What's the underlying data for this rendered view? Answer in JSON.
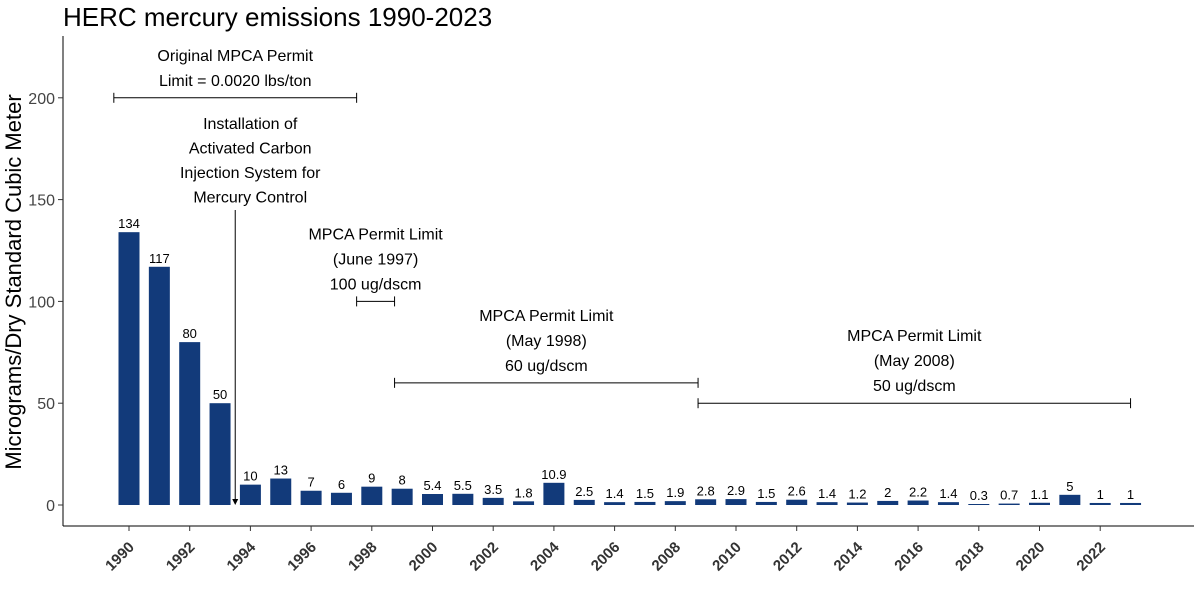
{
  "chart_data": {
    "type": "bar",
    "title": "HERC mercury emissions 1990-2023",
    "xlabel": "",
    "ylabel": "Micrograms/Dry Standard Cubic Meter",
    "ylim": [
      0,
      230
    ],
    "yticks": [
      0,
      50,
      100,
      150,
      200
    ],
    "xticks": [
      1990,
      1992,
      1994,
      1996,
      1998,
      2000,
      2002,
      2004,
      2006,
      2008,
      2010,
      2012,
      2014,
      2016,
      2018,
      2020,
      2022
    ],
    "grid": false,
    "bar_color": "#123a7a",
    "categories": [
      1990,
      1991,
      1992,
      1993,
      1994,
      1995,
      1996,
      1997,
      1998,
      1999,
      2000,
      2001,
      2002,
      2003,
      2004,
      2005,
      2006,
      2007,
      2008,
      2009,
      2010,
      2011,
      2012,
      2013,
      2014,
      2015,
      2016,
      2017,
      2018,
      2019,
      2020,
      2021,
      2022,
      2023
    ],
    "values": [
      134,
      117,
      80,
      50,
      10,
      13,
      7,
      6,
      9,
      8,
      5.4,
      5.5,
      3.5,
      1.8,
      10.9,
      2.5,
      1.4,
      1.5,
      1.9,
      2.8,
      2.9,
      1.5,
      2.6,
      1.4,
      1.2,
      2,
      2.2,
      1.4,
      0.3,
      0.7,
      1.1,
      5,
      1,
      1
    ],
    "value_labels": [
      "134",
      "117",
      "80",
      "50",
      "10",
      "13",
      "7",
      "6",
      "9",
      "8",
      "5.4",
      "5.5",
      "3.5",
      "1.8",
      "10.9",
      "2.5",
      "1.4",
      "1.5",
      "1.9",
      "2.8",
      "2.9",
      "1.5",
      "2.6",
      "1.4",
      "1.2",
      "2",
      "2.2",
      "1.4",
      "0.3",
      "0.7",
      "1.1",
      "5",
      "1",
      "1"
    ],
    "annotations": [
      {
        "name": "original-permit-limit",
        "lines": [
          "Original MPCA Permit",
          "Limit = 0.0020 lbs/ton"
        ],
        "x_start": 1989.5,
        "x_end": 1997.5,
        "y": 200
      },
      {
        "name": "permit-limit-1997",
        "lines": [
          "MPCA Permit Limit",
          "(June 1997)",
          "100 ug/dscm"
        ],
        "x_start": 1997.5,
        "x_end": 1998.75,
        "y": 100
      },
      {
        "name": "permit-limit-1998",
        "lines": [
          "MPCA Permit Limit",
          "(May 1998)",
          "60 ug/dscm"
        ],
        "x_start": 1998.75,
        "x_end": 2008.75,
        "y": 60
      },
      {
        "name": "permit-limit-2008",
        "lines": [
          "MPCA Permit Limit",
          "(May 2008)",
          "50 ug/dscm"
        ],
        "x_start": 2008.75,
        "x_end": 2023,
        "y": 50
      }
    ],
    "arrow_annotation": {
      "lines": [
        "Installation of",
        "Activated Carbon",
        "Injection System for",
        "Mercury Control"
      ],
      "x": 1993.5
    }
  }
}
